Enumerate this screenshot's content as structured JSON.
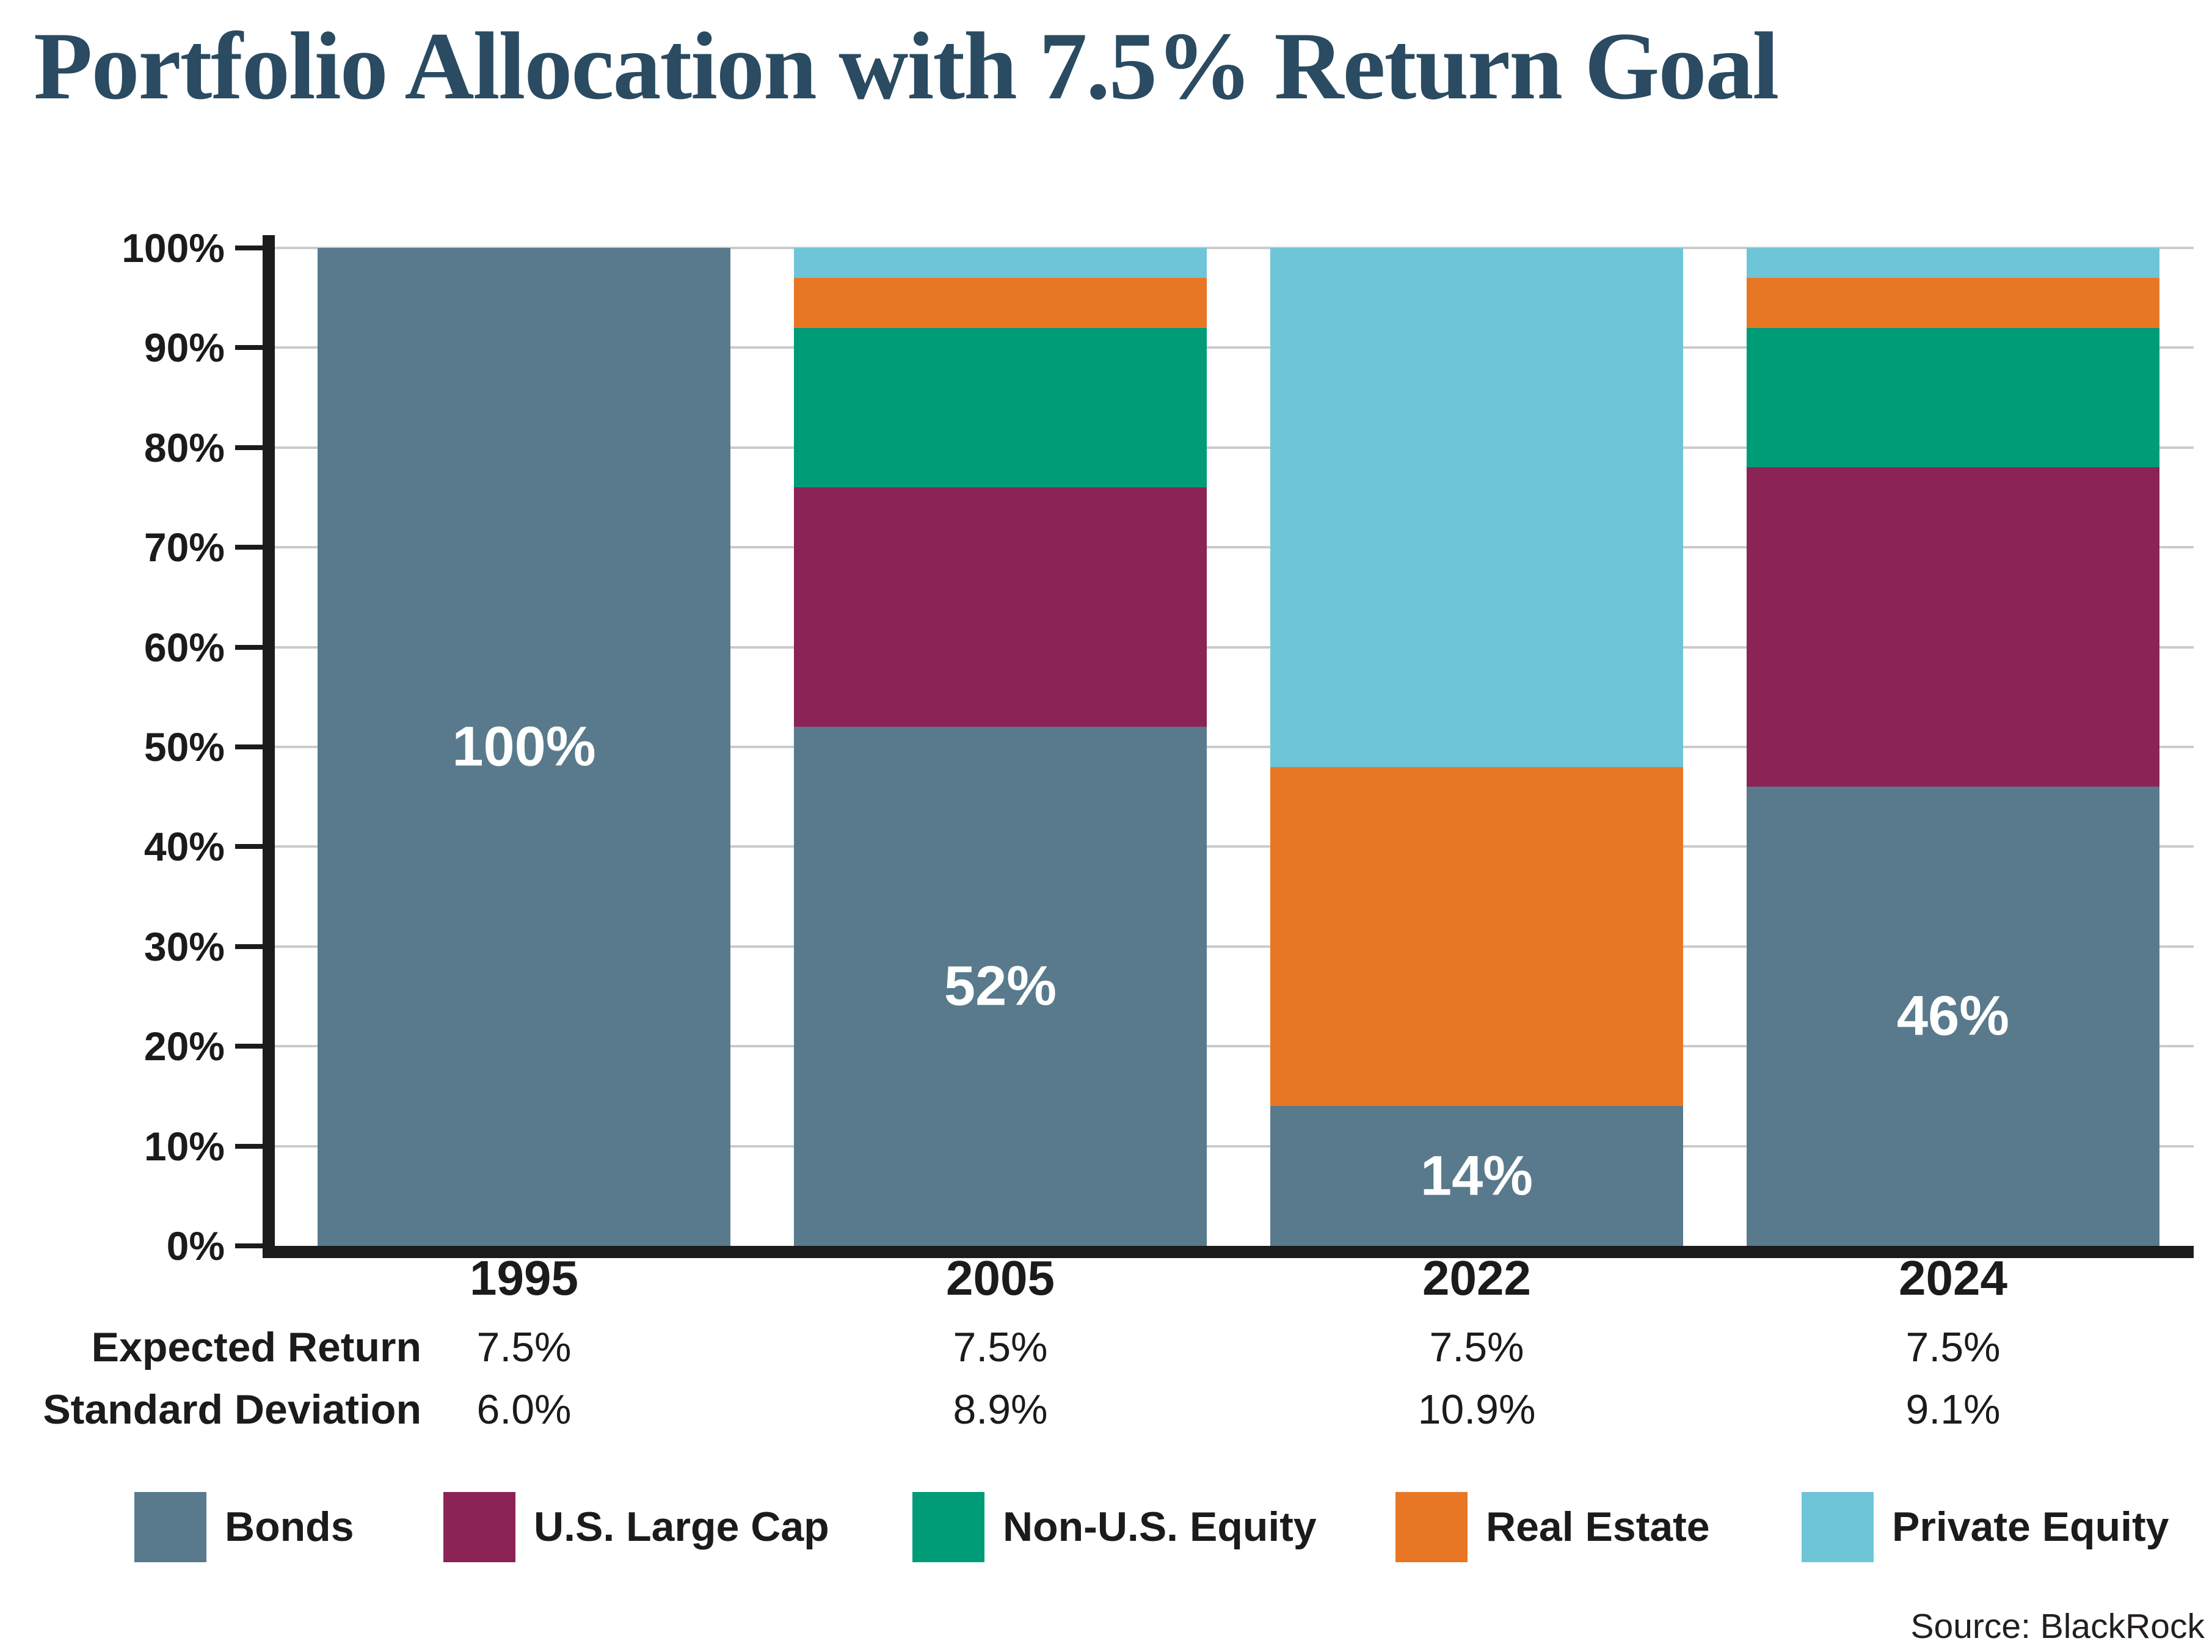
{
  "title": "Portfolio Allocation with 7.5% Return Goal",
  "source": "Source: BlackRock",
  "colors": {
    "title_text": "#2A4B61",
    "axis": "#1b1b1b",
    "gridline": "#cbcbcb",
    "bar_label_text": "#ffffff",
    "bonds": "#587A8C",
    "us_large_cap": "#8C2355",
    "non_us_equity": "#009B77",
    "real_estate": "#E87725",
    "private_equity": "#6FC5D8"
  },
  "chart_data": {
    "type": "bar",
    "stacked": true,
    "title": "Portfolio Allocation with 7.5% Return Goal",
    "xlabel": "",
    "ylabel": "",
    "ylim": [
      0,
      100
    ],
    "grid": true,
    "legend_position": "bottom",
    "yticks": [
      "0%",
      "10%",
      "20%",
      "30%",
      "40%",
      "50%",
      "60%",
      "70%",
      "80%",
      "90%",
      "100%"
    ],
    "categories": [
      "1995",
      "2005",
      "2022",
      "2024"
    ],
    "series": [
      {
        "name": "Bonds",
        "color": "#587A8C",
        "values": [
          100,
          52,
          14,
          46
        ]
      },
      {
        "name": "U.S. Large Cap",
        "color": "#8C2355",
        "values": [
          0,
          24,
          0,
          32
        ]
      },
      {
        "name": "Non-U.S. Equity",
        "color": "#009B77",
        "values": [
          0,
          16,
          0,
          14
        ]
      },
      {
        "name": "Real Estate",
        "color": "#E87725",
        "values": [
          0,
          5,
          34,
          5
        ]
      },
      {
        "name": "Private Equity",
        "color": "#6FC5D8",
        "values": [
          0,
          3,
          52,
          3
        ]
      }
    ],
    "bar_labels": [
      "100%",
      "52%",
      "14%",
      "46%"
    ]
  },
  "table": {
    "rows": [
      {
        "label": "Expected Return",
        "values": [
          "7.5%",
          "7.5%",
          "7.5%",
          "7.5%"
        ]
      },
      {
        "label": "Standard Deviation",
        "values": [
          "6.0%",
          "8.9%",
          "10.9%",
          "9.1%"
        ]
      }
    ]
  },
  "legend": {
    "items": [
      {
        "label": "Bonds",
        "color": "#587A8C"
      },
      {
        "label": "U.S. Large Cap",
        "color": "#8C2355"
      },
      {
        "label": "Non-U.S. Equity",
        "color": "#009B77"
      },
      {
        "label": "Real Estate",
        "color": "#E87725"
      },
      {
        "label": "Private Equity",
        "color": "#6FC5D8"
      }
    ]
  }
}
